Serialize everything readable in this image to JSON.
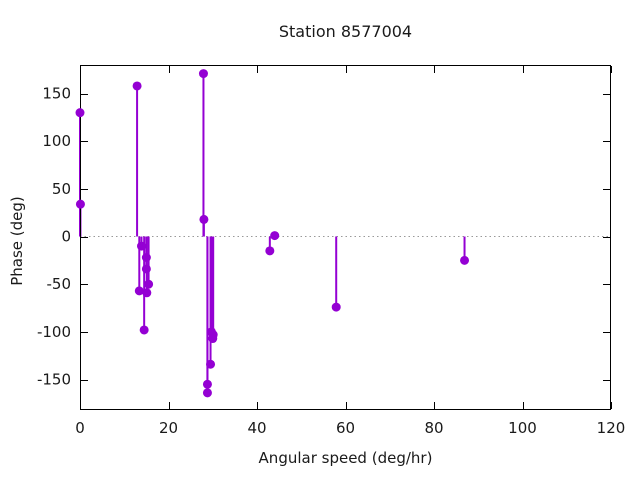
{
  "chart_data": {
    "type": "scatter",
    "style": "impulses-with-points",
    "title": "Station 8577004",
    "xlabel": "Angular speed (deg/hr)",
    "ylabel": "Phase (deg)",
    "xlim": [
      0,
      120
    ],
    "ylim": [
      -182,
      180
    ],
    "x_ticks": [
      0,
      20,
      40,
      60,
      80,
      100,
      120
    ],
    "y_ticks": [
      -150,
      -100,
      -50,
      0,
      50,
      100,
      150
    ],
    "grid": false,
    "legend": "none",
    "zero_line": true,
    "colors": {
      "series": "#9400d3",
      "axis": "#000000",
      "text": "#1a1a1a",
      "zero_line": "#999999"
    },
    "points": [
      [
        0.0,
        130
      ],
      [
        0.1,
        34
      ],
      [
        12.9,
        158
      ],
      [
        13.4,
        -57
      ],
      [
        13.9,
        -10
      ],
      [
        14.5,
        -98
      ],
      [
        15.0,
        -22
      ],
      [
        15.0,
        -34
      ],
      [
        15.5,
        -50
      ],
      [
        15.1,
        -59
      ],
      [
        27.9,
        171
      ],
      [
        28.0,
        18
      ],
      [
        28.8,
        -155
      ],
      [
        28.8,
        -164
      ],
      [
        29.5,
        -134
      ],
      [
        29.7,
        -100
      ],
      [
        30.1,
        -103
      ],
      [
        30.0,
        -107
      ],
      [
        42.9,
        -15
      ],
      [
        44.0,
        1
      ],
      [
        57.9,
        -74
      ],
      [
        86.9,
        -25
      ]
    ]
  }
}
